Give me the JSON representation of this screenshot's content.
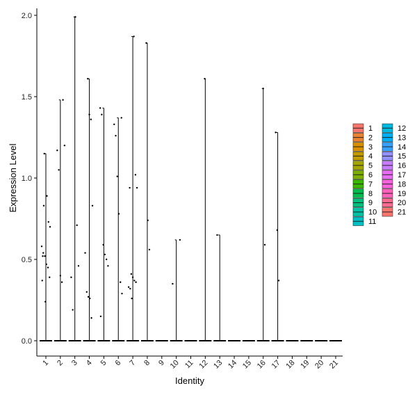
{
  "chart_data": {
    "type": "violin",
    "xlabel": "Identity",
    "ylabel": "Expression Level",
    "ylim": [
      0,
      2
    ],
    "yticks": [
      "0.0",
      "0.5",
      "1.0",
      "1.5",
      "2.0"
    ],
    "categories": [
      "1",
      "2",
      "3",
      "4",
      "5",
      "6",
      "7",
      "8",
      "9",
      "10",
      "11",
      "12",
      "13",
      "14",
      "15",
      "16",
      "17",
      "18",
      "19",
      "20",
      "21"
    ],
    "max_values": [
      1.15,
      1.48,
      1.99,
      1.61,
      1.43,
      1.37,
      1.87,
      1.83,
      0,
      0.62,
      0,
      1.61,
      0.65,
      0,
      0,
      1.55,
      1.28,
      0,
      0,
      0,
      0
    ],
    "points": [
      {
        "group": "1",
        "values": [
          0.58,
          0.54,
          0.52,
          0.47,
          0.45,
          0.39,
          0.37,
          0.83,
          0.24,
          0.89,
          0.73,
          0.7,
          0.52,
          1.15
        ]
      },
      {
        "group": "2",
        "values": [
          1.48,
          1.2,
          1.17,
          1.05,
          0.4,
          0.36
        ]
      },
      {
        "group": "3",
        "values": [
          1.99,
          0.71,
          0.46,
          0.39,
          0.19
        ]
      },
      {
        "group": "4",
        "values": [
          1.61,
          1.39,
          1.36,
          0.83,
          0.54,
          0.3,
          0.27,
          0.26,
          0.14
        ]
      },
      {
        "group": "5",
        "values": [
          1.43,
          1.39,
          0.59,
          0.53,
          0.5,
          0.46,
          0.15
        ]
      },
      {
        "group": "6",
        "values": [
          1.37,
          1.33,
          1.26,
          1.01,
          0.78,
          0.36,
          0.29
        ]
      },
      {
        "group": "7",
        "values": [
          1.87,
          1.02,
          0.94,
          0.94,
          0.41,
          0.39,
          0.37,
          0.36,
          0.33,
          0.32,
          0.26
        ]
      },
      {
        "group": "8",
        "values": [
          1.83,
          0.74,
          0.56
        ]
      },
      {
        "group": "10",
        "values": [
          0.62,
          0.35
        ]
      },
      {
        "group": "12",
        "values": [
          1.61
        ]
      },
      {
        "group": "13",
        "values": [
          0.65
        ]
      },
      {
        "group": "16",
        "values": [
          1.55,
          0.59
        ]
      },
      {
        "group": "17",
        "values": [
          1.28,
          0.68,
          0.37
        ]
      }
    ],
    "legend": {
      "position": "right",
      "columns": [
        [
          "1",
          "2",
          "3",
          "4",
          "5",
          "6",
          "7",
          "8",
          "9",
          "10",
          "11"
        ],
        [
          "12",
          "13",
          "14",
          "15",
          "16",
          "17",
          "18",
          "19",
          "20",
          "21"
        ]
      ]
    },
    "colors": [
      "#F8766D",
      "#EA8331",
      "#D89000",
      "#C09B00",
      "#A3A500",
      "#7CAE00",
      "#39B600",
      "#00BB4E",
      "#00BF7D",
      "#00C1A3",
      "#00BFC4",
      "#00BAE0",
      "#00B0F6",
      "#35A2FF",
      "#9590FF",
      "#C77CFF",
      "#E76BF3",
      "#FA62DB",
      "#FF62BC",
      "#FF6C91",
      "#F8766D"
    ],
    "grid": false,
    "point_color": "#000000",
    "line_color": "#000000"
  }
}
